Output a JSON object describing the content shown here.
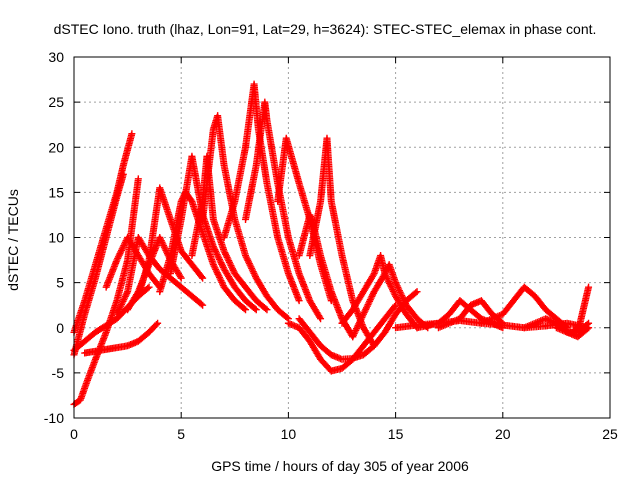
{
  "chart_data": {
    "type": "scatter",
    "title": "dSTEC Iono. truth (lhaz, Lon=91, Lat=29, h=3624): STEC-STEC_elemax in phase cont.",
    "xlabel": "GPS time / hours of day 305 of year 2006",
    "ylabel": "dSTEC  / TECUs",
    "xlim": [
      0,
      25
    ],
    "ylim": [
      -10,
      30
    ],
    "xticks": [
      "0",
      "5",
      "10",
      "15",
      "20",
      "25"
    ],
    "yticks": [
      "-10",
      "-5",
      "0",
      "5",
      "10",
      "15",
      "20",
      "25",
      "30"
    ],
    "grid": true,
    "legend": "none",
    "marker": "plus",
    "color": "#ff0000",
    "series": [
      {
        "x": [
          0.0,
          0.5,
          1.0,
          1.5,
          2.0,
          2.3,
          2.7
        ],
        "y": [
          -0.5,
          3.0,
          7.0,
          11.0,
          15.0,
          18.0,
          21.5
        ]
      },
      {
        "x": [
          0.0,
          0.5,
          1.0,
          1.5,
          2.0,
          2.3
        ],
        "y": [
          -3.0,
          1.5,
          5.5,
          10.0,
          14.5,
          17.0
        ]
      },
      {
        "x": [
          0.0,
          0.3,
          0.6,
          1.0,
          1.5,
          2.0,
          2.5,
          3.0
        ],
        "y": [
          -8.5,
          -8.0,
          -6.0,
          -3.5,
          -0.5,
          3.0,
          7.5,
          16.5
        ]
      },
      {
        "x": [
          0.0,
          0.5,
          1.0,
          2.0,
          3.0,
          3.5
        ],
        "y": [
          -2.5,
          -1.5,
          -0.5,
          1.0,
          3.5,
          4.5
        ]
      },
      {
        "x": [
          0.5,
          1.0,
          1.5,
          2.0,
          2.5,
          3.0,
          3.5,
          3.9
        ],
        "y": [
          -2.8,
          -2.6,
          -2.4,
          -2.2,
          -2.0,
          -1.5,
          -0.5,
          0.5
        ]
      },
      {
        "x": [
          1.5,
          2.0,
          2.5,
          3.0,
          3.5,
          4.0
        ],
        "y": [
          4.5,
          7.5,
          10.0,
          8.0,
          6.0,
          4.5
        ]
      },
      {
        "x": [
          2.0,
          2.5,
          3.0,
          3.5,
          4.0,
          5.0,
          6.0
        ],
        "y": [
          1.5,
          4.0,
          10.0,
          8.0,
          6.5,
          4.5,
          2.5
        ]
      },
      {
        "x": [
          2.5,
          3.0,
          3.5,
          4.0,
          4.5,
          5.0
        ],
        "y": [
          2.0,
          4.0,
          7.0,
          10.0,
          7.5,
          5.5
        ]
      },
      {
        "x": [
          3.0,
          3.5,
          4.0,
          5.0,
          6.0
        ],
        "y": [
          3.5,
          7.5,
          15.5,
          8.5,
          5.5
        ]
      },
      {
        "x": [
          4.0,
          4.5,
          5.0,
          5.2,
          5.5,
          6.0,
          6.5,
          7.0,
          7.5,
          8.0
        ],
        "y": [
          4.0,
          8.0,
          14.0,
          15.0,
          14.0,
          10.5,
          7.0,
          4.5,
          3.0,
          2.0
        ]
      },
      {
        "x": [
          4.5,
          5.0,
          5.5,
          6.0,
          6.5,
          7.0,
          7.5,
          8.0,
          8.5
        ],
        "y": [
          6.0,
          12.0,
          19.0,
          12.5,
          9.0,
          6.5,
          4.5,
          3.0,
          2.0
        ]
      },
      {
        "x": [
          5.5,
          6.0,
          6.2,
          6.5,
          7.0,
          7.5,
          8.0,
          8.5,
          9.0
        ],
        "y": [
          8.0,
          14.0,
          19.0,
          12.0,
          8.5,
          6.0,
          4.5,
          3.0,
          2.0
        ]
      },
      {
        "x": [
          6.0,
          6.5,
          6.7,
          7.0,
          7.5,
          8.0,
          8.5,
          9.0,
          9.5,
          10.0
        ],
        "y": [
          12.0,
          22.0,
          23.5,
          18.0,
          12.0,
          8.0,
          5.5,
          3.5,
          2.0,
          1.0
        ]
      },
      {
        "x": [
          7.0,
          7.5,
          8.0,
          8.4,
          8.6,
          9.0,
          9.5,
          10.0,
          10.5
        ],
        "y": [
          10.0,
          14.0,
          20.0,
          27.0,
          22.0,
          16.0,
          10.0,
          6.0,
          3.0
        ]
      },
      {
        "x": [
          8.0,
          8.5,
          8.9,
          9.0,
          9.5,
          10.0,
          10.5,
          11.0,
          11.5
        ],
        "y": [
          12.0,
          18.0,
          25.0,
          23.0,
          16.0,
          10.0,
          6.0,
          3.0,
          1.0
        ]
      },
      {
        "x": [
          9.5,
          9.9,
          10.5,
          11.0,
          11.5,
          12.0
        ],
        "y": [
          14.0,
          21.0,
          16.0,
          12.0,
          7.0,
          3.0
        ]
      },
      {
        "x": [
          10.5,
          11.0,
          11.1,
          11.5,
          12.0,
          12.5,
          13.0
        ],
        "y": [
          8.0,
          12.5,
          12.0,
          8.0,
          4.0,
          1.0,
          -1.0
        ]
      },
      {
        "x": [
          11.0,
          11.5,
          11.8,
          12.0,
          12.5,
          13.0,
          13.5,
          14.0
        ],
        "y": [
          8.0,
          14.0,
          21.0,
          14.0,
          8.0,
          3.0,
          0.0,
          -2.0
        ]
      },
      {
        "x": [
          10.0,
          10.5,
          11.0,
          11.5,
          12.0,
          12.5,
          13.0,
          13.5,
          14.0,
          14.5,
          15.0
        ],
        "y": [
          0.5,
          0.0,
          -1.5,
          -3.5,
          -4.8,
          -4.5,
          -3.5,
          -2.0,
          -0.5,
          1.0,
          2.5
        ]
      },
      {
        "x": [
          10.5,
          11.0,
          11.5,
          12.0,
          12.5,
          13.0,
          13.5,
          14.0,
          14.5,
          15.0,
          15.5,
          16.0
        ],
        "y": [
          1.0,
          -0.5,
          -2.0,
          -3.0,
          -3.5,
          -3.4,
          -3.0,
          -2.0,
          -0.5,
          1.5,
          3.0,
          4.0
        ]
      },
      {
        "x": [
          12.5,
          13.0,
          13.5,
          14.0,
          14.3,
          14.5,
          15.0,
          15.5,
          16.0
        ],
        "y": [
          0.5,
          2.0,
          4.0,
          6.0,
          8.0,
          6.0,
          3.5,
          1.5,
          0.0
        ]
      },
      {
        "x": [
          13.0,
          13.5,
          14.0,
          14.5,
          14.7,
          15.0,
          15.5,
          16.0,
          16.5
        ],
        "y": [
          -1.0,
          1.5,
          4.0,
          6.0,
          7.0,
          5.0,
          2.5,
          1.0,
          0.0
        ]
      },
      {
        "x": [
          15.0,
          16.0,
          17.0,
          18.0,
          19.0,
          20.0,
          21.0,
          22.0,
          23.0,
          24.0
        ],
        "y": [
          0.0,
          0.3,
          0.5,
          0.8,
          0.5,
          0.3,
          0.0,
          0.2,
          0.5,
          0.0
        ]
      },
      {
        "x": [
          16.0,
          17.0,
          17.5,
          18.0,
          18.5,
          19.0,
          19.5,
          20.0
        ],
        "y": [
          0.0,
          0.5,
          1.5,
          3.0,
          2.0,
          1.0,
          0.5,
          0.0
        ]
      },
      {
        "x": [
          17.0,
          18.0,
          18.5,
          19.0,
          19.5,
          20.0
        ],
        "y": [
          0.0,
          1.0,
          2.5,
          3.0,
          1.5,
          0.5
        ]
      },
      {
        "x": [
          19.0,
          20.0,
          20.5,
          21.0,
          21.5,
          22.0,
          22.5,
          23.0
        ],
        "y": [
          0.5,
          1.5,
          3.0,
          4.5,
          3.5,
          2.0,
          1.0,
          0.0
        ]
      },
      {
        "x": [
          21.0,
          22.0,
          22.5,
          23.0,
          23.5,
          24.0
        ],
        "y": [
          0.0,
          1.0,
          0.5,
          -0.5,
          -0.5,
          0.5
        ]
      },
      {
        "x": [
          23.0,
          23.3,
          23.6,
          23.8,
          24.0
        ],
        "y": [
          -0.5,
          -0.5,
          0.5,
          2.5,
          4.5
        ]
      },
      {
        "x": [
          22.5,
          23.0,
          23.5,
          24.0
        ],
        "y": [
          0.0,
          -0.5,
          -1.0,
          0.0
        ]
      }
    ]
  }
}
